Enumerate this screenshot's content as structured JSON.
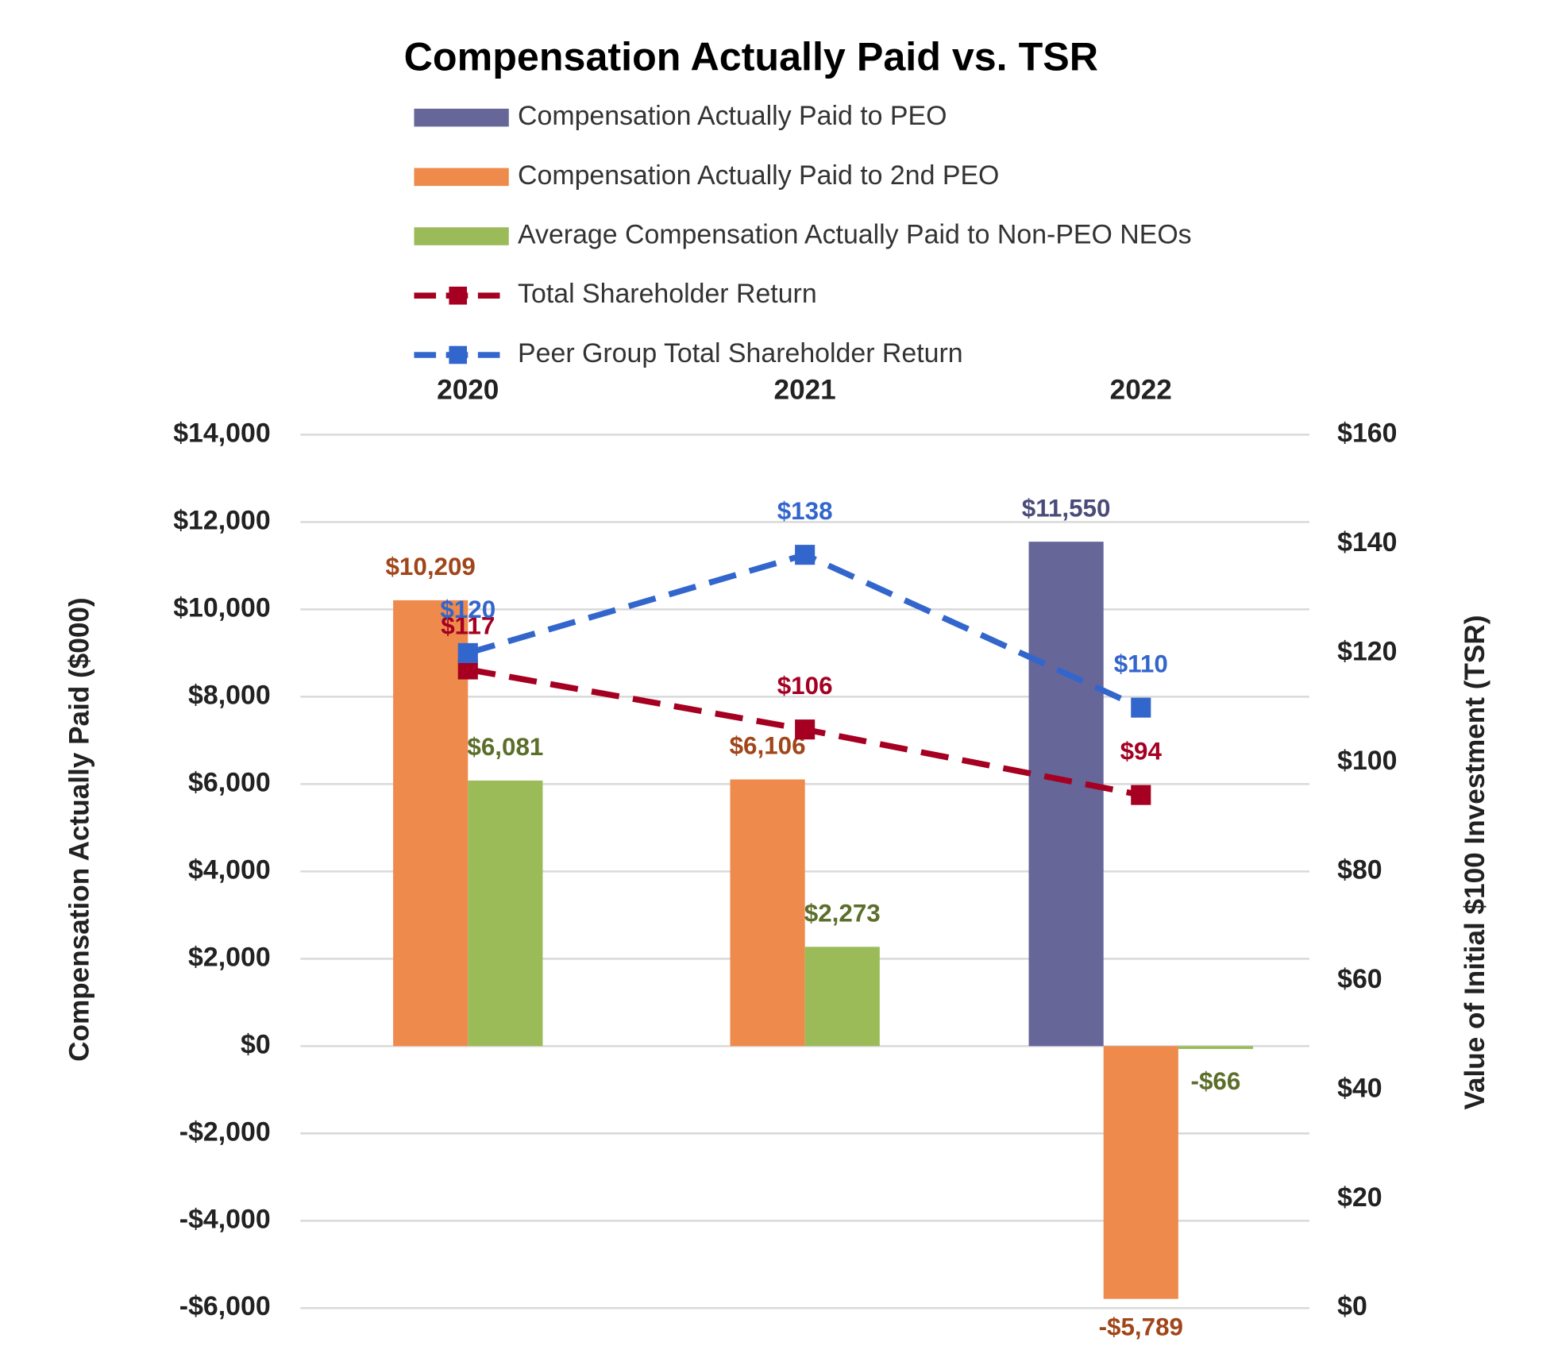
{
  "chart_data": {
    "type": "bar_line",
    "title": "Compensation Actually Paid vs. TSR",
    "y_label": "Compensation Actually Paid ($000)",
    "y2_label": "Value of Initial $100 Investment (TSR)",
    "categories": [
      "2020",
      "2021",
      "2022"
    ],
    "ylim": [
      -6000,
      14000
    ],
    "yticks": [
      {
        "value": -6000,
        "label": "-$6,000"
      },
      {
        "value": -4000,
        "label": "-$4,000"
      },
      {
        "value": -2000,
        "label": "-$2,000"
      },
      {
        "value": 0,
        "label": "$0"
      },
      {
        "value": 2000,
        "label": "$2,000"
      },
      {
        "value": 4000,
        "label": "$4,000"
      },
      {
        "value": 6000,
        "label": "$6,000"
      },
      {
        "value": 8000,
        "label": "$8,000"
      },
      {
        "value": 10000,
        "label": "$10,000"
      },
      {
        "value": 12000,
        "label": "$12,000"
      },
      {
        "value": 14000,
        "label": "$14,000"
      }
    ],
    "y2lim": [
      0,
      160
    ],
    "y2ticks": [
      {
        "value": 0,
        "label": "$0"
      },
      {
        "value": 20,
        "label": "$20"
      },
      {
        "value": 40,
        "label": "$40"
      },
      {
        "value": 60,
        "label": "$60"
      },
      {
        "value": 80,
        "label": "$80"
      },
      {
        "value": 100,
        "label": "$100"
      },
      {
        "value": 120,
        "label": "$120"
      },
      {
        "value": 140,
        "label": "$140"
      },
      {
        "value": 160,
        "label": "$160"
      }
    ],
    "grid": true,
    "series": [
      {
        "name": "Compensation Actually Paid to PEO",
        "type": "bar",
        "color": "#666699",
        "label_color": "#4b4b7a",
        "values": [
          null,
          null,
          11550
        ],
        "value_labels": [
          null,
          null,
          "$11,550"
        ]
      },
      {
        "name": "Compensation Actually Paid to 2nd PEO",
        "type": "bar",
        "color": "#ed8a4c",
        "label_color": "#a0461a",
        "values": [
          10209,
          6106,
          -5789
        ],
        "value_labels": [
          "$10,209",
          "$6,106",
          "-$5,789"
        ]
      },
      {
        "name": "Average Compensation Actually Paid to Non-PEO NEOs",
        "type": "bar",
        "color": "#9bbb59",
        "label_color": "#5b6e2a",
        "values": [
          6081,
          2273,
          -66
        ],
        "value_labels": [
          "$6,081",
          "$2,273",
          "-$66"
        ]
      },
      {
        "name": "Total Shareholder Return",
        "type": "line",
        "axis": "y2",
        "color": "#a50021",
        "label_color": "#a50021",
        "values": [
          117,
          106,
          94
        ],
        "value_labels": [
          "$117",
          "$106",
          "$94"
        ]
      },
      {
        "name": "Peer Group Total Shareholder Return",
        "type": "line",
        "axis": "y2",
        "color": "#3366cc",
        "label_color": "#3366cc",
        "values": [
          120,
          138,
          110
        ],
        "value_labels": [
          "$120",
          "$138",
          "$110"
        ]
      }
    ]
  }
}
